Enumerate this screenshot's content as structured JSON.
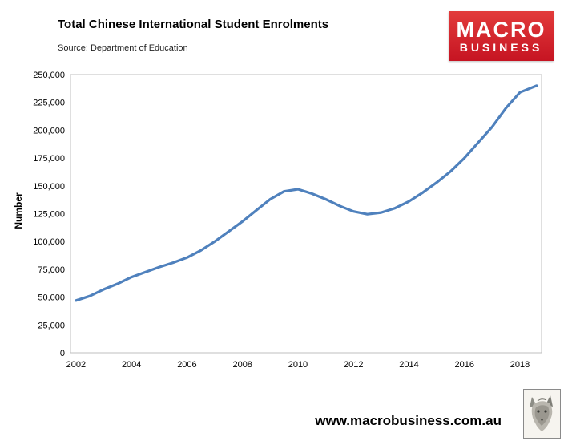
{
  "header": {
    "title": "Total Chinese International Student Enrolments",
    "source": "Source: Department of Education"
  },
  "logo": {
    "line1": "MACRO",
    "line2": "BUSINESS",
    "background_color": "#cf1f2e"
  },
  "footer": {
    "url": "www.macrobusiness.com.au"
  },
  "chart_data": {
    "type": "line",
    "title": "Total Chinese International Student Enrolments",
    "subtitle": "Source: Department of Education",
    "xlabel": "",
    "ylabel": "Number",
    "grid": false,
    "legend": false,
    "line_color": "#4f81bd",
    "xlim": [
      2001.8,
      2018.78
    ],
    "ylim": [
      0,
      250000
    ],
    "x_ticks": [
      2002,
      2004,
      2006,
      2008,
      2010,
      2012,
      2014,
      2016,
      2018
    ],
    "y_ticks": [
      0,
      25000,
      50000,
      75000,
      100000,
      125000,
      150000,
      175000,
      200000,
      225000,
      250000
    ],
    "y_tick_labels": [
      "0",
      "25,000",
      "50,000",
      "75,000",
      "100,000",
      "125,000",
      "150,000",
      "175,000",
      "200,000",
      "225,000",
      "250,000"
    ],
    "series": [
      {
        "name": "Total Chinese international student enrolments",
        "color": "#4f81bd",
        "x": [
          2002,
          2002.5,
          2003,
          2003.5,
          2004,
          2004.5,
          2005,
          2005.5,
          2006,
          2006.5,
          2007,
          2007.5,
          2008,
          2008.5,
          2009,
          2009.5,
          2010,
          2010.5,
          2011,
          2011.5,
          2012,
          2012.5,
          2013,
          2013.5,
          2014,
          2014.5,
          2015,
          2015.5,
          2016,
          2016.5,
          2017,
          2017.5,
          2018,
          2018.6
        ],
        "y": [
          47000,
          51000,
          57000,
          62000,
          68000,
          72500,
          77000,
          81000,
          85500,
          92000,
          100000,
          109000,
          118000,
          128000,
          138000,
          145000,
          147000,
          143000,
          138000,
          132000,
          127000,
          124500,
          126000,
          130000,
          136000,
          144000,
          153000,
          163000,
          175000,
          189000,
          203000,
          220000,
          234000,
          240000
        ]
      }
    ]
  }
}
